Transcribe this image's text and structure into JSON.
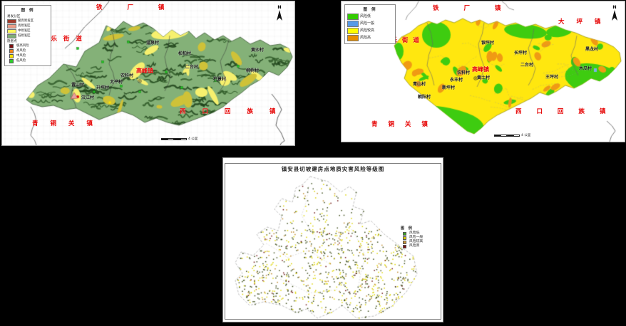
{
  "shared": {
    "north_label": "N"
  },
  "map_left": {
    "legend": {
      "title": "图 例",
      "sections": [
        {
          "title": "易发分区",
          "items": [
            {
              "label": "极高易发区",
              "color": "#a03a2c"
            },
            {
              "label": "高易发区",
              "color": "#eb9e8a"
            },
            {
              "label": "中易发区",
              "color": "#fff75c"
            },
            {
              "label": "低易发区",
              "color": "#7fae77"
            }
          ]
        },
        {
          "title": "隐患点",
          "items": [
            {
              "label": "极高风险",
              "color": "#7d1212"
            },
            {
              "label": "高风险",
              "color": "#ef8218"
            },
            {
              "label": "中风险",
              "color": "#ffe400"
            },
            {
              "label": "低风险",
              "color": "#2ecc2e"
            }
          ]
        }
      ]
    },
    "towns": {
      "tiechang": "铁 厂 镇",
      "yongle": "永 乐 街 道",
      "qingtongguan": "青 铜 关 镇",
      "xikou": "西 口 回 族 镇",
      "gaofeng": "高峰镇"
    },
    "villages": [
      "温泉村",
      "松柏村",
      "黄沙村",
      "二台村",
      "农科村",
      "太平村",
      "升坪村",
      "青山村",
      "柳树村",
      "石景村",
      "汉江村"
    ],
    "scale_label": "4 公里"
  },
  "map_right": {
    "legend": {
      "title": "图 例",
      "items": [
        {
          "label": "风险低",
          "color": "#33cc00"
        },
        {
          "label": "风险一般",
          "color": "#569ae6"
        },
        {
          "label": "风险较高",
          "color": "#ffff00"
        },
        {
          "label": "风险高",
          "color": "#e89000"
        }
      ]
    },
    "towns": {
      "tiechang": "铁 厂 镇",
      "daping": "大 坪 镇",
      "yongle": "永 乐 街 道",
      "qingtongguan": "青 铜 关 镇",
      "xikou": "西 口 回 族 镇",
      "gaofeng": "高峰镇"
    },
    "villages": [
      "银坪村",
      "长坪村",
      "黑龙村",
      "二台村",
      "木瓜村",
      "王坪村",
      "农科村",
      "永丰村",
      "黄土村",
      "青山村",
      "新坪村",
      "朝阳村"
    ],
    "scale_label": "4 公里"
  },
  "map_bottom": {
    "title": "镇安县切坡建房点地质灾害风险等级图",
    "legend": {
      "title": "图 例",
      "items": [
        {
          "label": "风险低",
          "color": "#3da128"
        },
        {
          "label": "风险一般",
          "color": "#d8c800"
        },
        {
          "label": "风险较高",
          "color": "#cf9a3a"
        },
        {
          "label": "风险高",
          "color": "#7a1414"
        }
      ]
    }
  },
  "colors": {
    "left_base": "#84b178",
    "left_ridge": "#2f5a28",
    "left_ridge2": "#1f431a",
    "left_patch": "#f6f06e",
    "left_patch2": "#cfc238",
    "grid": "#ececec",
    "right_base": "#ffe70f",
    "right_green": "#3ecc10",
    "right_orange": "#f09a14",
    "right_blue": "#7ab0e8",
    "dot_green": "#3f4f1d",
    "dot_yellow": "#ddd400",
    "dot_orange": "#c08a28",
    "dot_red": "#6b1010",
    "outline": "#b4b4b4"
  }
}
